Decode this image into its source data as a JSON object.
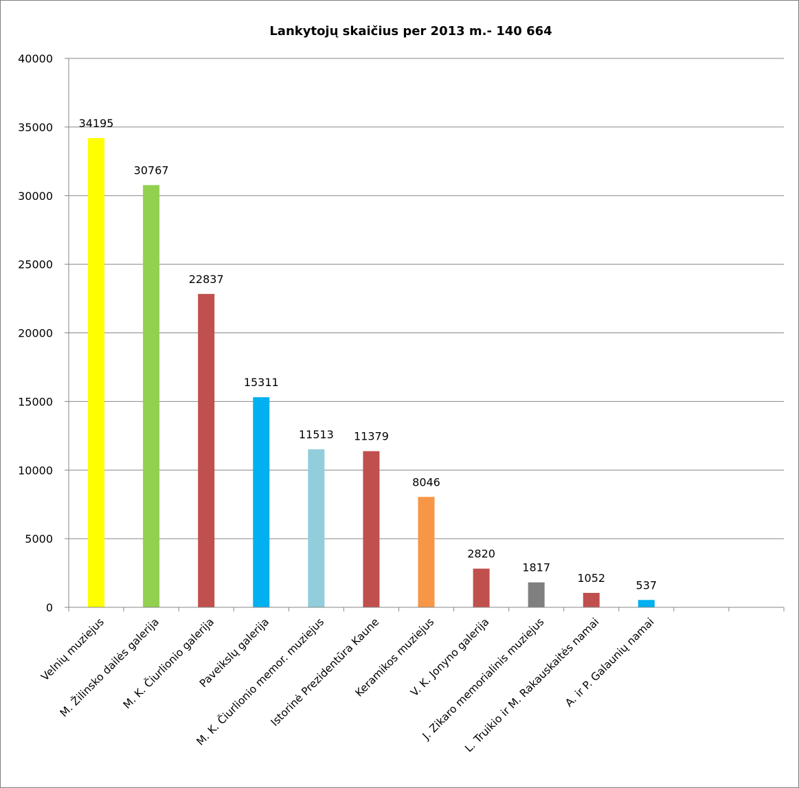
{
  "chart_data": {
    "type": "bar",
    "title": "Lankytojų skaičius per 2013 m.- 140 664",
    "xlabel": "",
    "ylabel": "",
    "ylim": [
      0,
      40000
    ],
    "ytick_step": 5000,
    "grid": true,
    "legend": "none",
    "slot_count": 13,
    "categories": [
      "Velnių muziejus",
      "M. Žilinsko dailės galerija",
      "M. K. Čiurlionio galerija",
      "Paveikslų galerija",
      "M. K. Čiurlionio memor. muziejus",
      "Istorinė Prezidentūra Kaune",
      "Keramikos muziejus",
      "V. K. Jonyno galerija",
      "J. Zikaro memorialinis muziejus",
      "L. Truikio ir M. Rakauskaitės namai",
      "A. ir P. Galaunių namai"
    ],
    "values": [
      34195,
      30767,
      22837,
      15311,
      11513,
      11379,
      8046,
      2820,
      1817,
      1052,
      537
    ],
    "data_labels": [
      "34195",
      "30767",
      "22837",
      "15311",
      "11513",
      "11379",
      "8046",
      "2820",
      "1817",
      "1052",
      "537"
    ],
    "colors": [
      "#ffff00",
      "#92d050",
      "#c0504d",
      "#00b0f0",
      "#92cddc",
      "#c0504d",
      "#f79646",
      "#c0504d",
      "#7f7f7f",
      "#c0504d",
      "#00b0f0"
    ],
    "gridline_color": "#868686"
  }
}
